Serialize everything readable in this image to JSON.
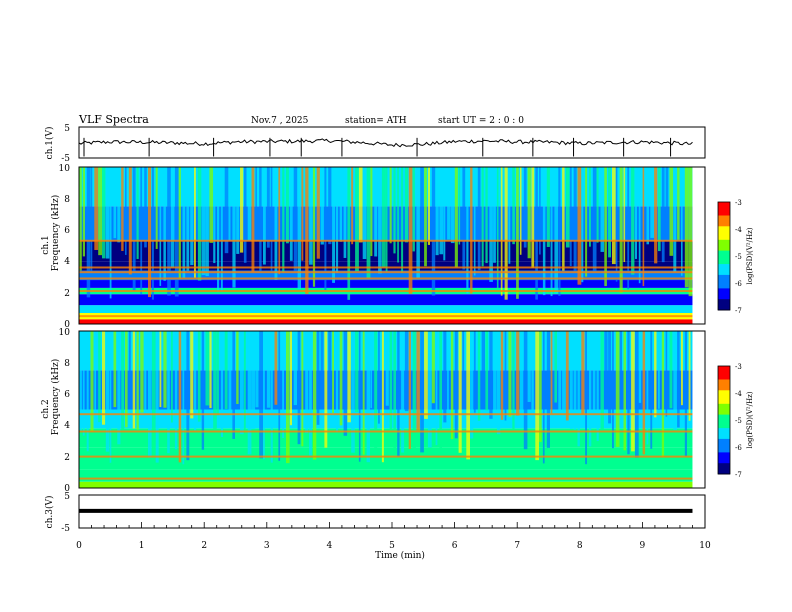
{
  "header": {
    "title": "VLF  Spectra",
    "date": "Nov.7  , 2025",
    "station": "station= ATH",
    "start": "start  UT  =   2  : 0  : 0"
  },
  "colors": {
    "trace": "#000000",
    "axis": "#000000",
    "colormap": [
      "#000080",
      "#0000ff",
      "#0080ff",
      "#00e0ff",
      "#00ff90",
      "#80ff00",
      "#ffff00",
      "#ff8000",
      "#ff0000",
      "#ffffff"
    ]
  },
  "chart_data": [
    {
      "type": "line",
      "id": "ch1-waveform",
      "ylabel": "ch.1(V)",
      "ylim": [
        -5,
        5
      ],
      "yticks": [
        "5",
        "-5"
      ],
      "xlim": [
        0,
        10
      ],
      "x": [
        0,
        0.5,
        1,
        1.5,
        2,
        2.5,
        3,
        3.5,
        4,
        4.5,
        5,
        5.5,
        6,
        6.5,
        7,
        7.5,
        8,
        8.5,
        9,
        9.5,
        9.8
      ],
      "y": [
        -0.3,
        0.2,
        0.1,
        -0.1,
        -0.4,
        0.2,
        0.3,
        0.4,
        0.6,
        0.0,
        -0.8,
        -0.6,
        0.3,
        0.5,
        0.2,
        0.1,
        -0.3,
        0.0,
        0.2,
        -0.2,
        -0.5
      ],
      "spikes_min": [
        0.08,
        1.12,
        2.15,
        3.05,
        3.55,
        4.2,
        5.4,
        6.45,
        7.25,
        7.9,
        8.7,
        9.45
      ]
    },
    {
      "type": "heatmap",
      "id": "ch1-spectrogram",
      "ylabel": "ch.1",
      "ylabel2": "Frequency  (kHz)",
      "ylim": [
        0,
        10
      ],
      "yticks": [
        "10",
        "8",
        "6",
        "4",
        "2",
        "0"
      ],
      "xlim": [
        0,
        10
      ],
      "data_end_min": 9.8,
      "colorbar": {
        "label": "log(PSD)(V²/Hz)",
        "range": [
          -7,
          -3
        ],
        "ticks": [
          "-3",
          "-4",
          "-5",
          "-6",
          "-7"
        ]
      },
      "bands": [
        {
          "f0": 0.0,
          "f1": 0.3,
          "level": -3.3
        },
        {
          "f0": 0.3,
          "f1": 0.7,
          "level": -4.2
        },
        {
          "f0": 0.7,
          "f1": 1.2,
          "level": -5.3
        },
        {
          "f0": 1.2,
          "f1": 1.9,
          "level": -6.4
        },
        {
          "f0": 1.9,
          "f1": 2.3,
          "level": -5.1
        },
        {
          "f0": 2.3,
          "f1": 2.8,
          "level": -6.2
        },
        {
          "f0": 2.8,
          "f1": 3.4,
          "level": -5.7
        },
        {
          "f0": 3.4,
          "f1": 4.0,
          "level": -6.6
        },
        {
          "f0": 4.0,
          "f1": 5.3,
          "level": -6.8
        },
        {
          "f0": 5.3,
          "f1": 7.5,
          "level": -5.9
        },
        {
          "f0": 7.5,
          "f1": 10.0,
          "level": -5.4
        }
      ],
      "tones_khz": [
        0.5,
        2.1,
        2.9,
        3.3,
        3.6,
        5.3
      ]
    },
    {
      "type": "heatmap",
      "id": "ch2-spectrogram",
      "ylabel": "ch.2",
      "ylabel2": "Frequency  (kHz)",
      "ylim": [
        0,
        10
      ],
      "yticks": [
        "10",
        "8",
        "6",
        "4",
        "2",
        "0"
      ],
      "xlim": [
        0,
        10
      ],
      "data_end_min": 9.8,
      "colorbar": {
        "label": "log(PSD)(V²/Hz)",
        "range": [
          -7,
          -3
        ],
        "ticks": [
          "-3",
          "-4",
          "-5",
          "-6",
          "-7"
        ]
      },
      "bands": [
        {
          "f0": 0.0,
          "f1": 0.4,
          "level": -4.4
        },
        {
          "f0": 0.4,
          "f1": 1.2,
          "level": -4.9
        },
        {
          "f0": 1.2,
          "f1": 2.6,
          "level": -5.2
        },
        {
          "f0": 2.6,
          "f1": 3.8,
          "level": -5.0
        },
        {
          "f0": 3.8,
          "f1": 5.0,
          "level": -5.5
        },
        {
          "f0": 5.0,
          "f1": 7.5,
          "level": -5.9
        },
        {
          "f0": 7.5,
          "f1": 10.0,
          "level": -5.6
        }
      ],
      "tones_khz": [
        2.0,
        3.6,
        4.7,
        0.6
      ]
    },
    {
      "type": "line",
      "id": "ch3-waveform",
      "ylabel": "ch.3(V)",
      "ylim": [
        -5,
        5
      ],
      "yticks": [
        "5",
        "-5"
      ],
      "xlim": [
        0,
        10
      ],
      "x": [
        0,
        9.8
      ],
      "y": [
        0.2,
        0.2
      ],
      "xlabel": "Time  (min)",
      "xticks": [
        "0",
        "1",
        "2",
        "3",
        "4",
        "5",
        "6",
        "7",
        "8",
        "9",
        "10"
      ]
    }
  ]
}
